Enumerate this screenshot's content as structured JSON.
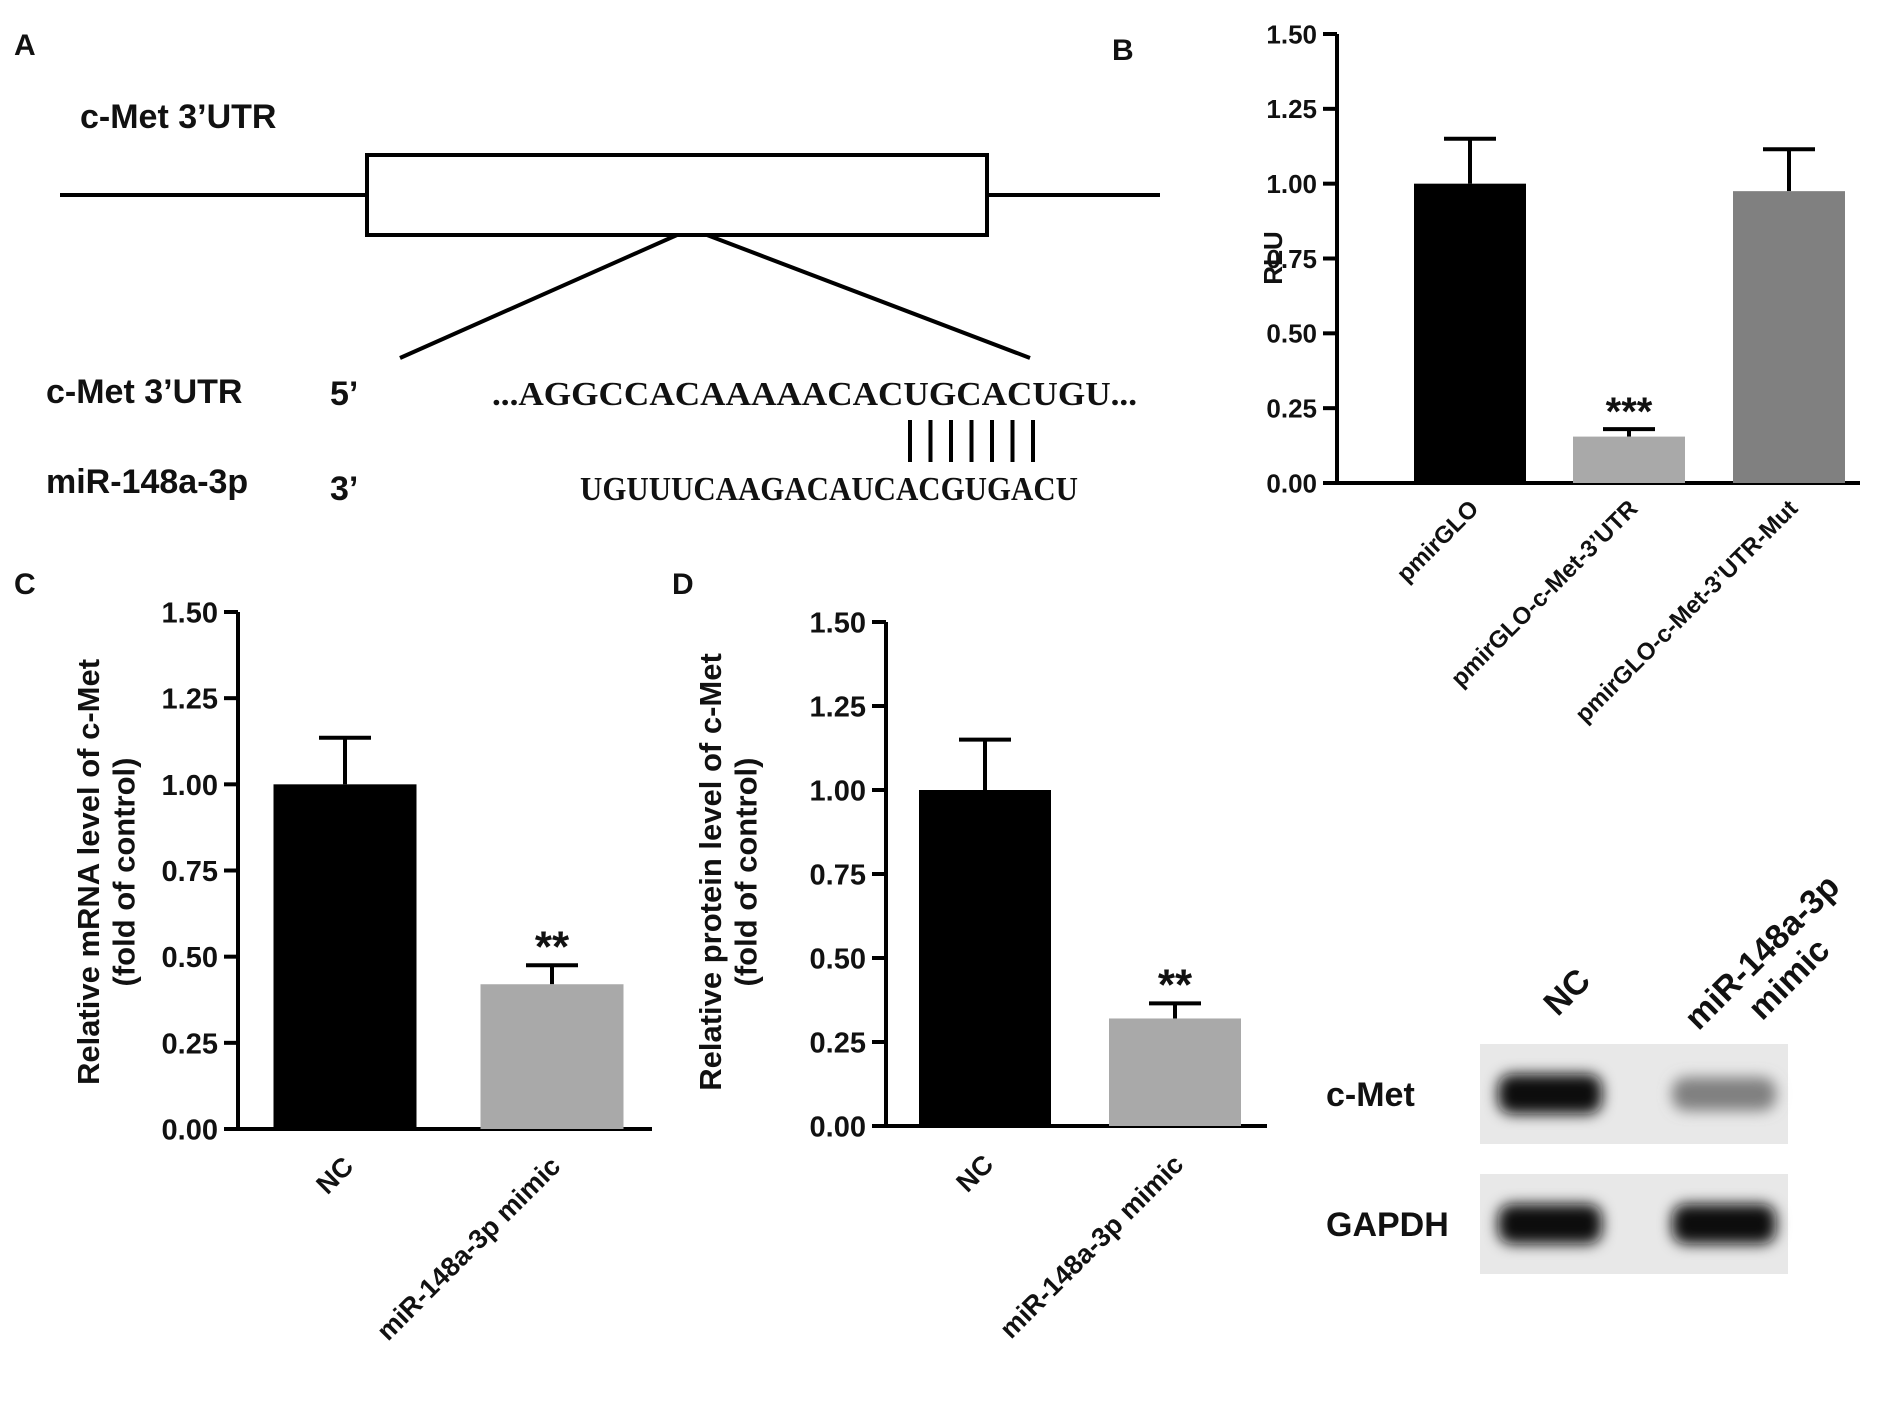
{
  "panel_a": {
    "letter": "A",
    "title": "c-Met 3’UTR",
    "row1_name": "c-Met 3’UTR",
    "row1_end": "5’",
    "row1_seq": "...AGGCCACAAAAACACUGCACUGU...",
    "row2_name": "miR-148a-3p",
    "row2_end": "3’",
    "row2_seq": "UGUUUCAAGACAUCACGUGACU",
    "pair_count": 7
  },
  "panel_letters": {
    "b": "B",
    "c": "C",
    "d": "D"
  },
  "blot": {
    "lanes": [
      "NC",
      "miR-148a-3p mimic"
    ],
    "rows": [
      {
        "label": "c-Met",
        "intensity": [
          1.0,
          0.45
        ]
      },
      {
        "label": "GAPDH",
        "intensity": [
          1.0,
          1.0
        ]
      }
    ]
  },
  "colors": {
    "black": "#000000",
    "light_gray": "#a9a9a9",
    "dark_gray": "#808080"
  },
  "chart_data": [
    {
      "panel": "B",
      "type": "bar",
      "ylabel": "RLU",
      "xlabel": "",
      "categories": [
        "pmirGLO",
        "pmirGLO-c-Met-3’UTR",
        "pmirGLO-c-Met-3’UTR-Mut"
      ],
      "values": [
        1.0,
        0.155,
        0.975
      ],
      "errors": [
        0.15,
        0.025,
        0.14
      ],
      "colors": [
        "#000000",
        "#a9a9a9",
        "#808080"
      ],
      "annotations": [
        "",
        "***",
        ""
      ],
      "ylim": [
        0,
        1.5
      ],
      "yticks": [
        "0.00",
        "0.25",
        "0.50",
        "0.75",
        "1.00",
        "1.25",
        "1.50"
      ]
    },
    {
      "panel": "C",
      "type": "bar",
      "ylabel": [
        "Relative mRNA level of c-Met",
        "(fold of control)"
      ],
      "xlabel": "",
      "categories": [
        "NC",
        "miR-148a-3p mimic"
      ],
      "values": [
        1.0,
        0.42
      ],
      "errors": [
        0.135,
        0.055
      ],
      "colors": [
        "#000000",
        "#a9a9a9"
      ],
      "annotations": [
        "",
        "**"
      ],
      "ylim": [
        0,
        1.5
      ],
      "yticks": [
        "0.00",
        "0.25",
        "0.50",
        "0.75",
        "1.00",
        "1.25",
        "1.50"
      ]
    },
    {
      "panel": "D",
      "type": "bar",
      "ylabel": [
        "Relative protein level of c-Met",
        "(fold of control)"
      ],
      "xlabel": "",
      "categories": [
        "NC",
        "miR-148a-3p mimic"
      ],
      "values": [
        1.0,
        0.32
      ],
      "errors": [
        0.15,
        0.045
      ],
      "colors": [
        "#000000",
        "#a9a9a9"
      ],
      "annotations": [
        "",
        "**"
      ],
      "ylim": [
        0,
        1.5
      ],
      "yticks": [
        "0.00",
        "0.25",
        "0.50",
        "0.75",
        "1.00",
        "1.25",
        "1.50"
      ]
    }
  ]
}
